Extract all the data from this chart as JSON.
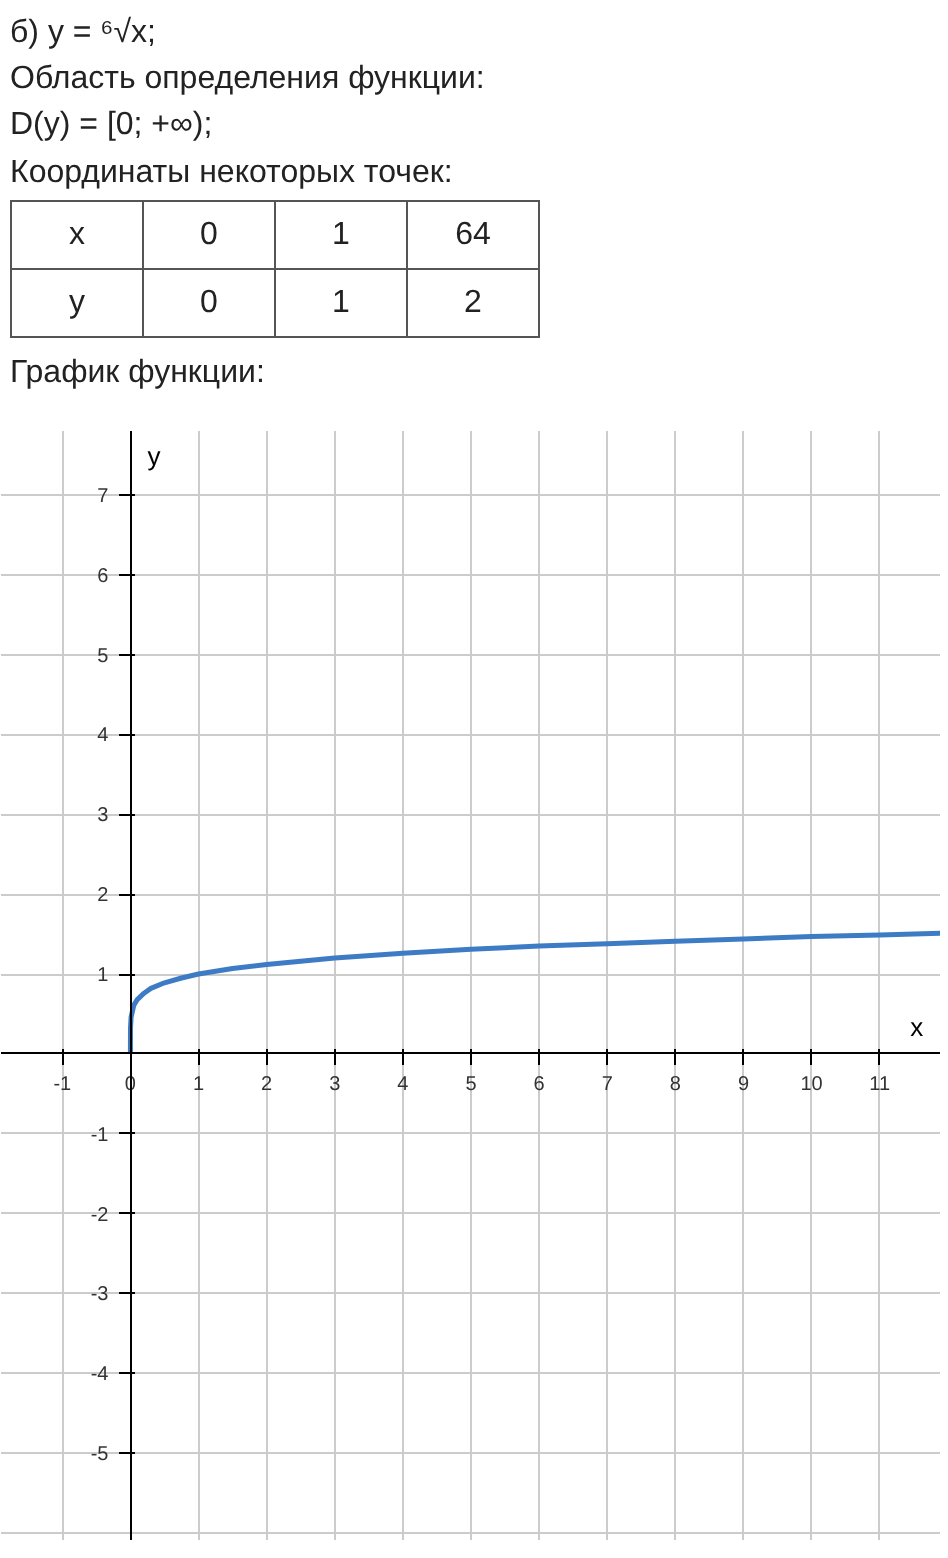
{
  "chart_data": {
    "type": "line",
    "title": "б) y = ⁶√x;",
    "annotations": [
      "Область определения функции:",
      "D(y) = [0; +∞);",
      "Координаты некоторых точек:",
      "x",
      "0",
      "1",
      "64",
      "y",
      "0",
      "1",
      "2",
      "График функции:"
    ],
    "xlabel": "x",
    "ylabel": "y",
    "x": [
      0,
      0.001,
      0.01,
      0.05,
      0.1,
      0.2,
      0.3,
      0.5,
      0.75,
      1,
      1.5,
      2,
      3,
      4,
      5,
      6,
      7,
      8,
      9,
      10,
      11,
      11.9
    ],
    "series": [
      {
        "color": "#3d7cc4",
        "values": [
          0,
          0.32,
          0.46,
          0.61,
          0.68,
          0.76,
          0.82,
          0.89,
          0.95,
          1,
          1.07,
          1.12,
          1.2,
          1.26,
          1.31,
          1.35,
          1.38,
          1.41,
          1.44,
          1.47,
          1.49,
          1.51
        ]
      }
    ],
    "xlim": [
      -1.9,
      11.9
    ],
    "ylim": [
      -6.1,
      7.8
    ],
    "xticks": [
      -1,
      0,
      1,
      2,
      3,
      4,
      5,
      6,
      7,
      8,
      9,
      10,
      11
    ],
    "yticks": [
      -5,
      -4,
      -3,
      -2,
      -1,
      1,
      2,
      3,
      4,
      5,
      6,
      7
    ],
    "grid": true,
    "line_style": "solid",
    "marker": "none"
  }
}
